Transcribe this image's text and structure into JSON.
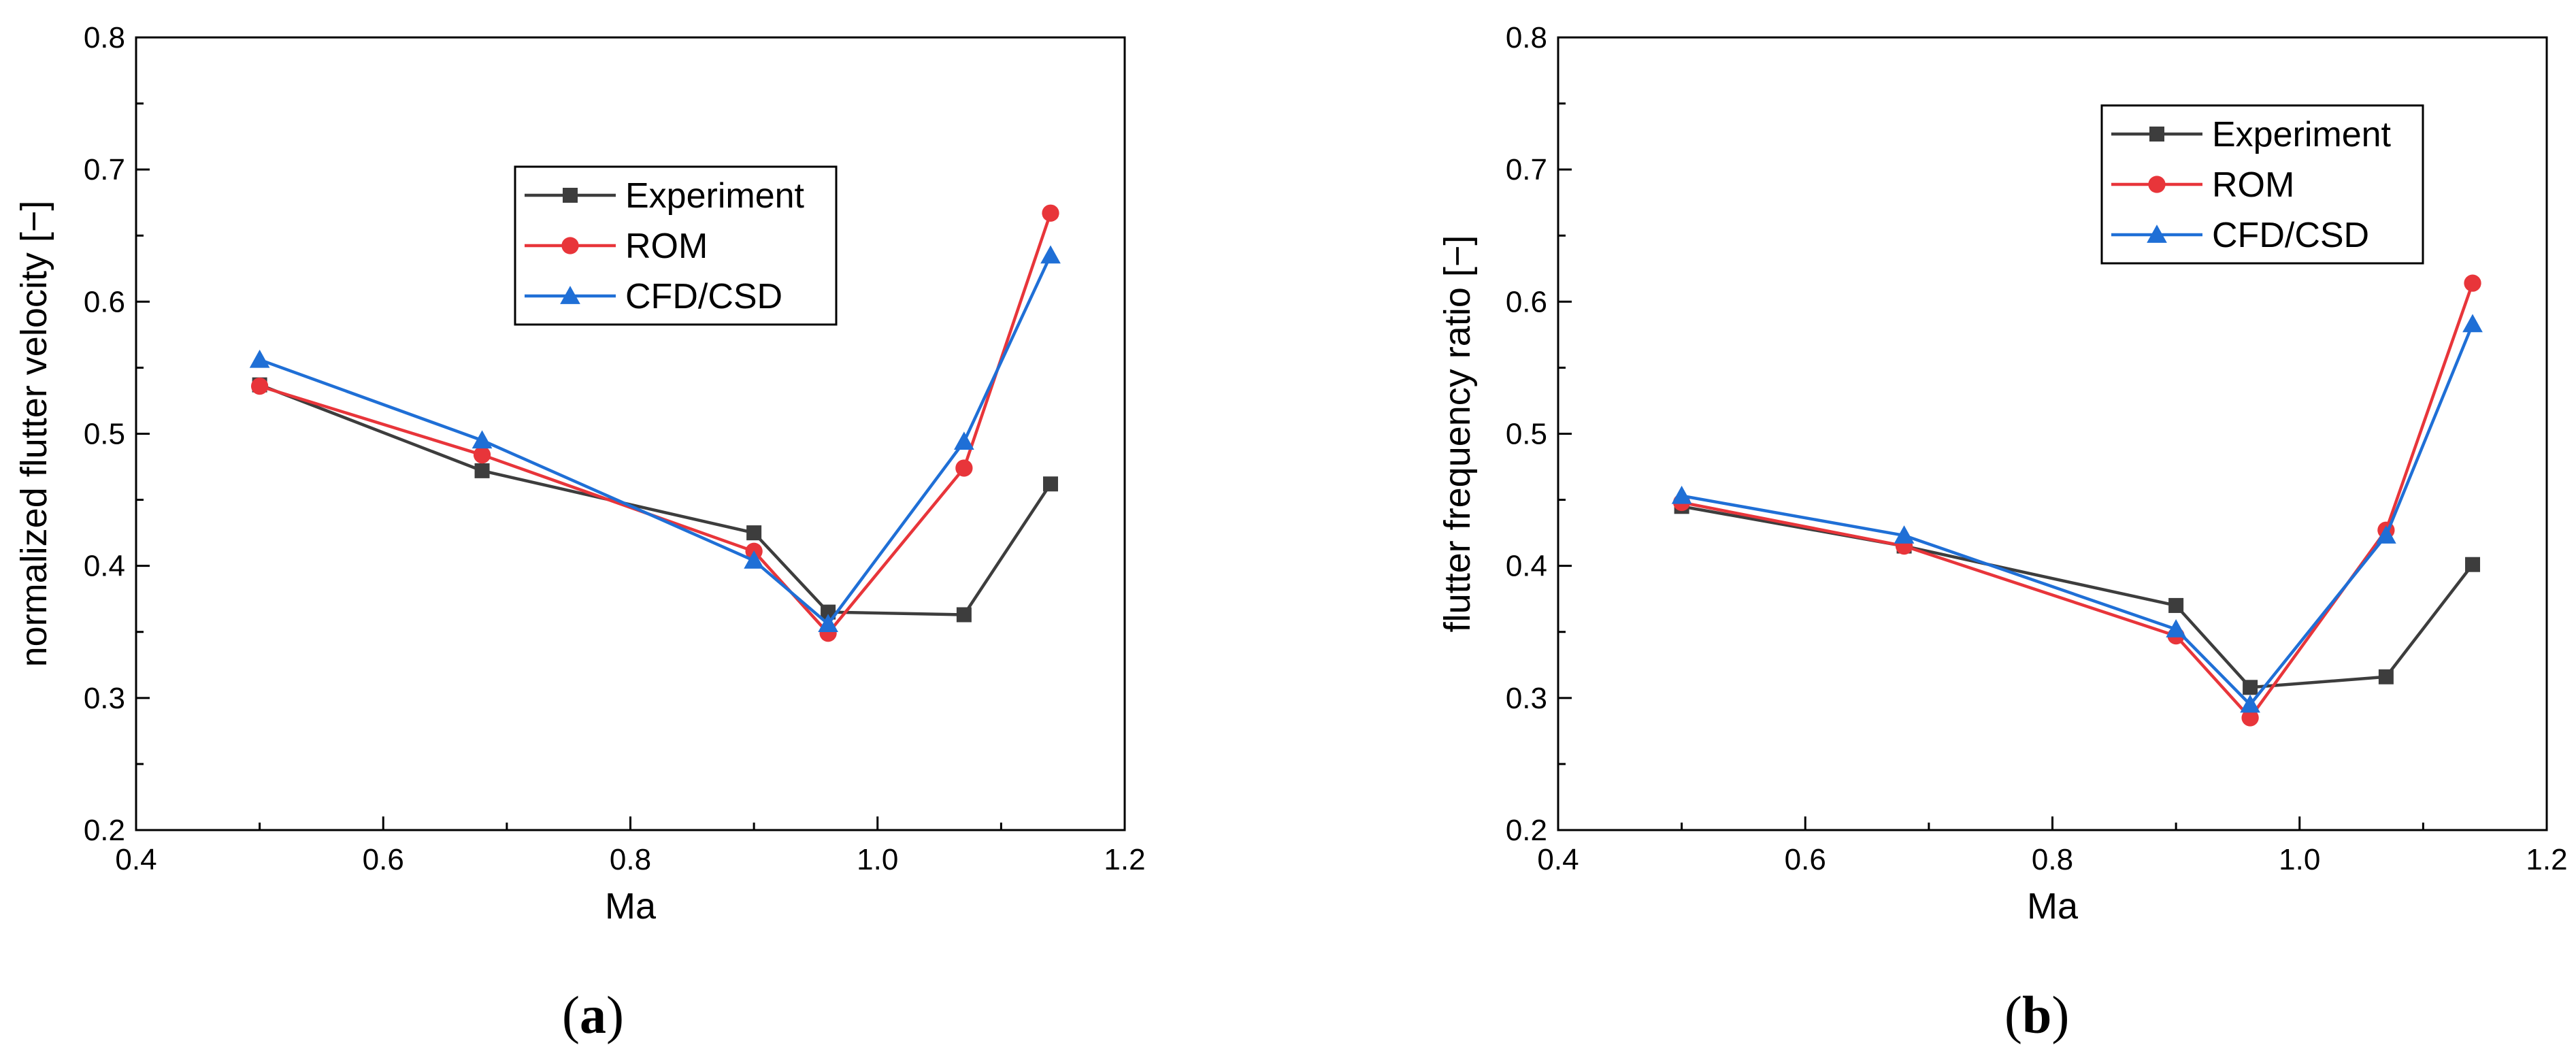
{
  "colors": {
    "experiment": "#3d3d3d",
    "rom": "#e8353a",
    "cfd_csd": "#1f6fd6",
    "axis": "#000000"
  },
  "chart_data": [
    {
      "id": "a",
      "type": "line",
      "caption": {
        "open": "(",
        "letter": "a",
        "close": ")"
      },
      "title": "",
      "xlabel": "Ma",
      "ylabel": "normalized flutter velocity [−]",
      "xlim": [
        0.4,
        1.2
      ],
      "ylim": [
        0.2,
        0.8
      ],
      "xticks": [
        0.4,
        0.6,
        0.8,
        1.0,
        1.2
      ],
      "xtick_labels": [
        "0.4",
        "0.6",
        "0.8",
        "1.0",
        "1.2"
      ],
      "yticks": [
        0.2,
        0.3,
        0.4,
        0.5,
        0.6,
        0.7,
        0.8
      ],
      "ytick_labels": [
        "0.2",
        "0.3",
        "0.4",
        "0.5",
        "0.6",
        "0.7",
        "0.8"
      ],
      "legend_position": "upper-center",
      "grid": false,
      "series": [
        {
          "name": "Experiment",
          "marker": "square",
          "colorKey": "experiment",
          "x": [
            0.5,
            0.68,
            0.9,
            0.96,
            1.07,
            1.14
          ],
          "y": [
            0.537,
            0.472,
            0.425,
            0.365,
            0.363,
            0.462
          ]
        },
        {
          "name": "ROM",
          "marker": "circle",
          "colorKey": "rom",
          "x": [
            0.5,
            0.68,
            0.9,
            0.96,
            1.07,
            1.14
          ],
          "y": [
            0.536,
            0.484,
            0.411,
            0.349,
            0.474,
            0.667
          ]
        },
        {
          "name": "CFD/CSD",
          "marker": "triangle",
          "colorKey": "cfd_csd",
          "x": [
            0.5,
            0.68,
            0.9,
            0.96,
            1.07,
            1.14
          ],
          "y": [
            0.556,
            0.495,
            0.404,
            0.356,
            0.494,
            0.635
          ]
        }
      ]
    },
    {
      "id": "b",
      "type": "line",
      "caption": {
        "open": "(",
        "letter": "b",
        "close": ")"
      },
      "title": "",
      "xlabel": "Ma",
      "ylabel": "flutter frequency ratio [−]",
      "xlim": [
        0.4,
        1.2
      ],
      "ylim": [
        0.2,
        0.8
      ],
      "xticks": [
        0.4,
        0.6,
        0.8,
        1.0,
        1.2
      ],
      "xtick_labels": [
        "0.4",
        "0.6",
        "0.8",
        "1.0",
        "1.2"
      ],
      "yticks": [
        0.2,
        0.3,
        0.4,
        0.5,
        0.6,
        0.7,
        0.8
      ],
      "ytick_labels": [
        "0.2",
        "0.3",
        "0.4",
        "0.5",
        "0.6",
        "0.7",
        "0.8"
      ],
      "legend_position": "top-right",
      "grid": false,
      "series": [
        {
          "name": "Experiment",
          "marker": "square",
          "colorKey": "experiment",
          "x": [
            0.5,
            0.68,
            0.9,
            0.96,
            1.07,
            1.14
          ],
          "y": [
            0.445,
            0.415,
            0.37,
            0.308,
            0.316,
            0.401
          ]
        },
        {
          "name": "ROM",
          "marker": "circle",
          "colorKey": "rom",
          "x": [
            0.5,
            0.68,
            0.9,
            0.96,
            1.07,
            1.14
          ],
          "y": [
            0.448,
            0.415,
            0.347,
            0.285,
            0.427,
            0.614
          ]
        },
        {
          "name": "CFD/CSD",
          "marker": "triangle",
          "colorKey": "cfd_csd",
          "x": [
            0.5,
            0.68,
            0.9,
            0.96,
            1.07,
            1.14
          ],
          "y": [
            0.453,
            0.423,
            0.352,
            0.295,
            0.423,
            0.583
          ]
        }
      ]
    }
  ]
}
